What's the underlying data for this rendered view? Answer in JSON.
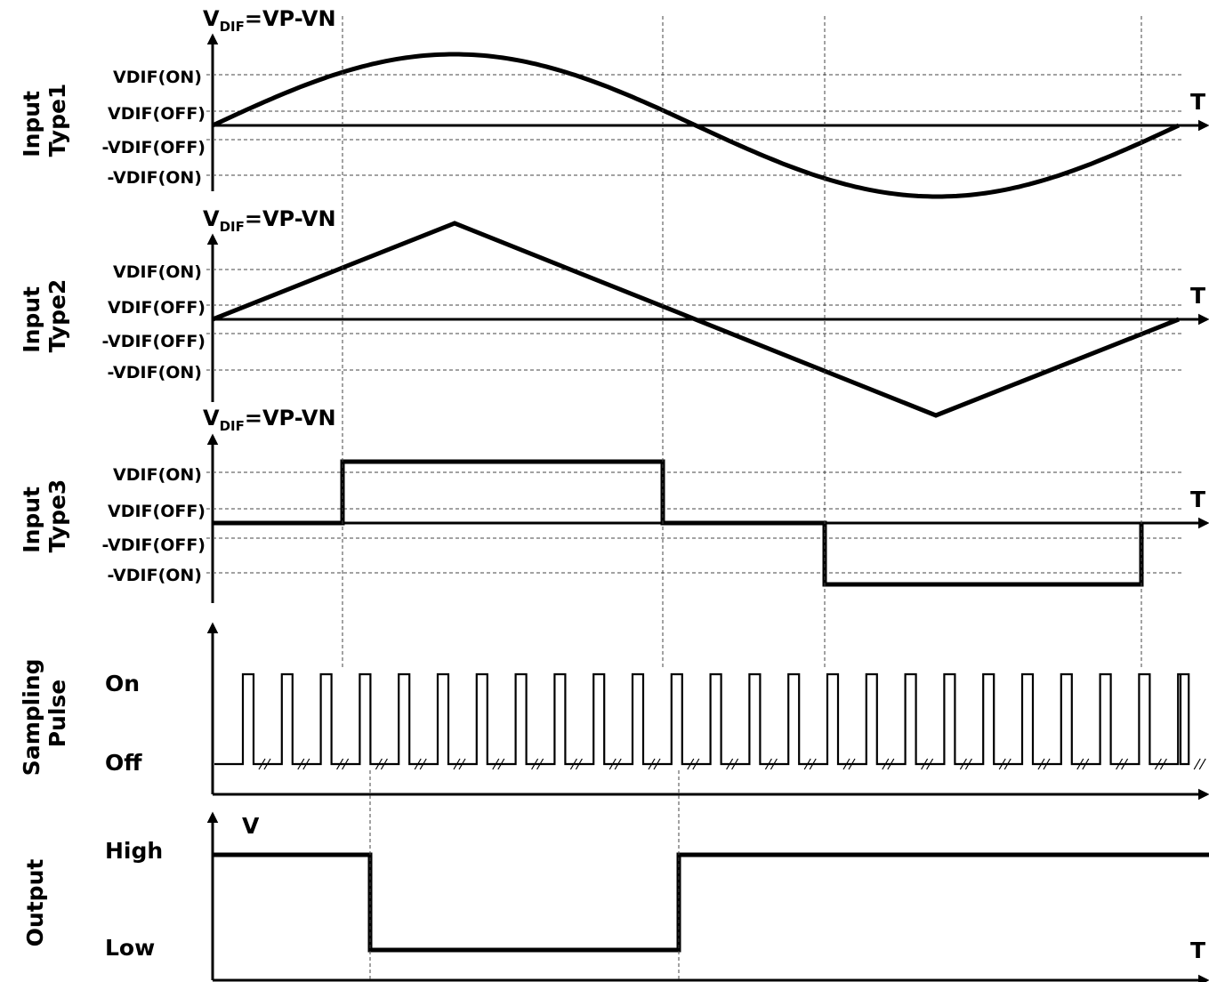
{
  "panels": [
    {
      "id": "type1",
      "side_label": [
        "Input",
        "Type1"
      ],
      "axis_title_main": "V",
      "axis_title_sub": "DIF",
      "axis_title_rest": "=VP-VN",
      "x_axis_label": "T",
      "levels": [
        "VDIF(ON)",
        "VDIF(OFF)",
        "-VDIF(OFF)",
        "-VDIF(ON)"
      ],
      "waveform": "sine"
    },
    {
      "id": "type2",
      "side_label": [
        "Input",
        "Type2"
      ],
      "axis_title_main": "V",
      "axis_title_sub": "DIF",
      "axis_title_rest": "=VP-VN",
      "x_axis_label": "T",
      "levels": [
        "VDIF(ON)",
        "VDIF(OFF)",
        "-VDIF(OFF)",
        "-VDIF(ON)"
      ],
      "waveform": "triangle"
    },
    {
      "id": "type3",
      "side_label": [
        "Input",
        "Type3"
      ],
      "axis_title_main": "V",
      "axis_title_sub": "DIF",
      "axis_title_rest": "=VP-VN",
      "x_axis_label": "T",
      "levels": [
        "VDIF(ON)",
        "VDIF(OFF)",
        "-VDIF(OFF)",
        "-VDIF(ON)"
      ],
      "waveform": "square"
    }
  ],
  "sampling": {
    "side_label": [
      "Sampling",
      "Pulse"
    ],
    "on_label": "On",
    "off_label": "Off",
    "pulse_count": 25
  },
  "output": {
    "side_label": [
      "Output"
    ],
    "axis_label": "V",
    "high_label": "High",
    "low_label": "Low",
    "x_axis_label": "T"
  }
}
